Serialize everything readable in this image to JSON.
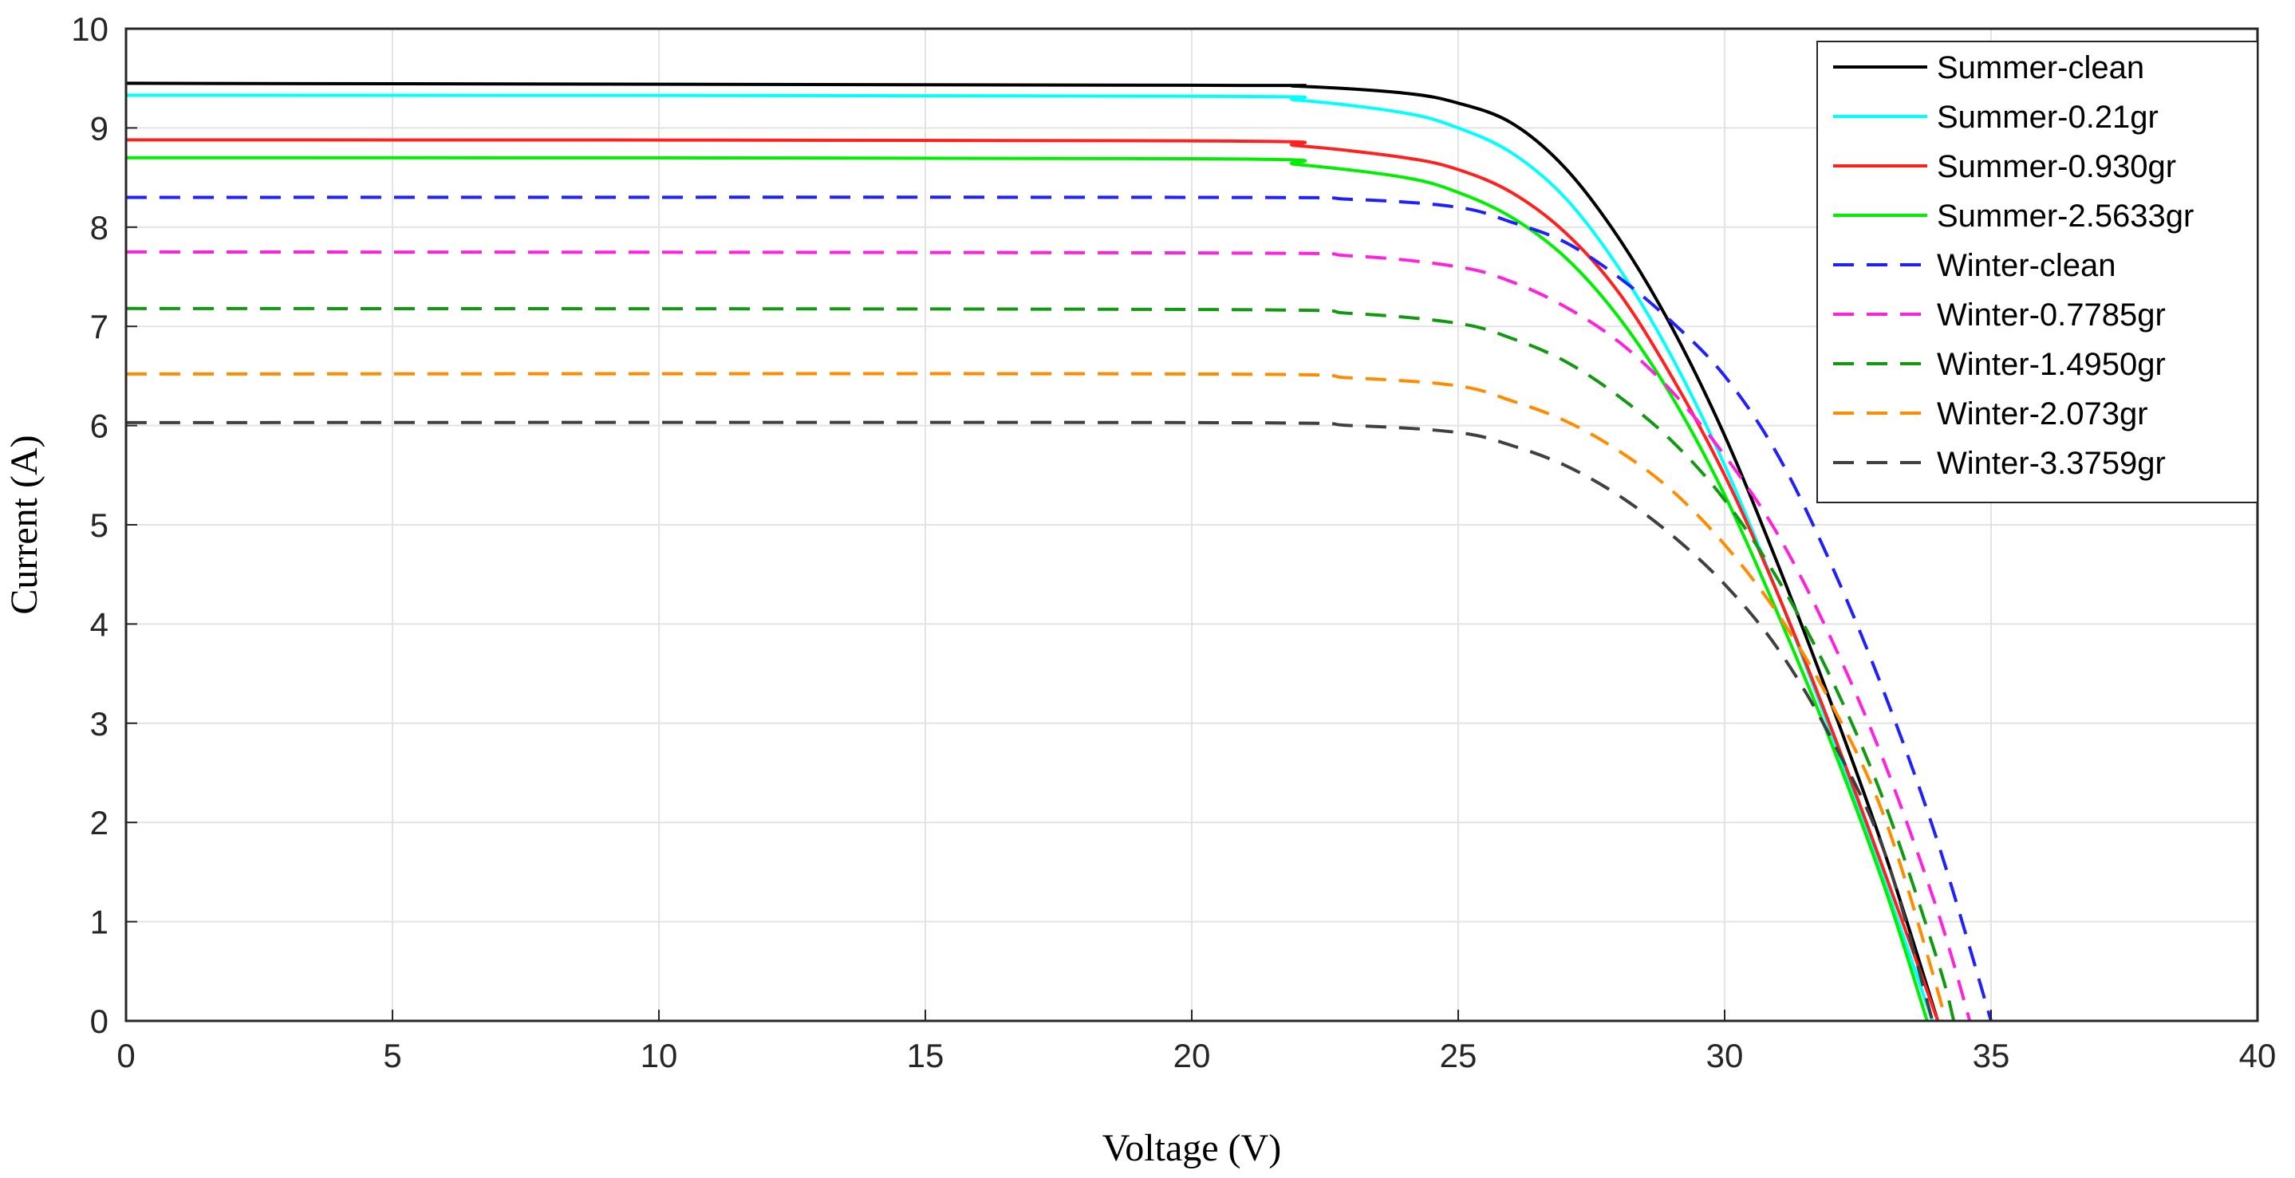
{
  "chart_data": {
    "type": "line",
    "title": "",
    "xlabel": "Voltage (V)",
    "ylabel": "Current (A)",
    "xlim": [
      0,
      40
    ],
    "ylim": [
      0,
      10
    ],
    "xticks": [
      "0",
      "5",
      "10",
      "15",
      "20",
      "25",
      "30",
      "35",
      "40"
    ],
    "yticks": [
      "0",
      "1",
      "2",
      "3",
      "4",
      "5",
      "6",
      "7",
      "8",
      "9",
      "10"
    ],
    "grid": true,
    "legend_position": "top-right",
    "series": [
      {
        "name": "Summer-clean",
        "color": "#000000",
        "dash": "solid",
        "isc": 9.45,
        "voc": 34.0,
        "points": [
          [
            0,
            9.45
          ],
          [
            20,
            9.43
          ],
          [
            22,
            9.42
          ],
          [
            24,
            9.35
          ],
          [
            25,
            9.25
          ],
          [
            26,
            9.05
          ],
          [
            27,
            8.6
          ],
          [
            28,
            7.9
          ],
          [
            29,
            7.0
          ],
          [
            30,
            5.9
          ],
          [
            31,
            4.6
          ],
          [
            32,
            3.2
          ],
          [
            33,
            1.7
          ],
          [
            34,
            0
          ]
        ]
      },
      {
        "name": "Summer-0.21gr",
        "color": "#00ffff",
        "dash": "solid",
        "isc": 9.33,
        "voc": 33.9,
        "points": [
          [
            0,
            9.33
          ],
          [
            20,
            9.32
          ],
          [
            22,
            9.28
          ],
          [
            24,
            9.15
          ],
          [
            25,
            9.0
          ],
          [
            26,
            8.75
          ],
          [
            27,
            8.3
          ],
          [
            28,
            7.6
          ],
          [
            29,
            6.7
          ],
          [
            30,
            5.6
          ],
          [
            31,
            4.3
          ],
          [
            32,
            2.9
          ],
          [
            33,
            1.4
          ],
          [
            33.9,
            0
          ]
        ]
      },
      {
        "name": "Summer-0.930gr",
        "color": "#ff2020",
        "dash": "solid",
        "isc": 8.88,
        "voc": 34.0,
        "points": [
          [
            0,
            8.88
          ],
          [
            20,
            8.87
          ],
          [
            22,
            8.82
          ],
          [
            24,
            8.7
          ],
          [
            25,
            8.58
          ],
          [
            26,
            8.35
          ],
          [
            27,
            7.95
          ],
          [
            28,
            7.35
          ],
          [
            29,
            6.5
          ],
          [
            30,
            5.5
          ],
          [
            31,
            4.3
          ],
          [
            32,
            2.95
          ],
          [
            33,
            1.5
          ],
          [
            34,
            0
          ]
        ]
      },
      {
        "name": "Summer-2.5633gr",
        "color": "#00ee00",
        "dash": "solid",
        "isc": 8.7,
        "voc": 33.8,
        "points": [
          [
            0,
            8.7
          ],
          [
            20,
            8.69
          ],
          [
            22,
            8.63
          ],
          [
            24,
            8.5
          ],
          [
            25,
            8.35
          ],
          [
            26,
            8.1
          ],
          [
            27,
            7.7
          ],
          [
            28,
            7.1
          ],
          [
            29,
            6.3
          ],
          [
            30,
            5.3
          ],
          [
            31,
            4.1
          ],
          [
            32,
            2.8
          ],
          [
            33,
            1.35
          ],
          [
            33.8,
            0
          ]
        ]
      },
      {
        "name": "Winter-clean",
        "color": "#2020ff",
        "dash": "dashed",
        "isc": 8.3,
        "voc": 35.0,
        "points": [
          [
            0,
            8.3
          ],
          [
            20,
            8.3
          ],
          [
            23,
            8.28
          ],
          [
            25,
            8.2
          ],
          [
            26,
            8.05
          ],
          [
            27,
            7.85
          ],
          [
            28,
            7.5
          ],
          [
            29,
            7.05
          ],
          [
            30,
            6.5
          ],
          [
            31,
            5.7
          ],
          [
            32,
            4.6
          ],
          [
            33,
            3.3
          ],
          [
            34,
            1.8
          ],
          [
            35,
            0
          ]
        ]
      },
      {
        "name": "Winter-0.7785gr",
        "color": "#ff22dd",
        "dash": "dashed",
        "isc": 7.75,
        "voc": 34.6,
        "points": [
          [
            0,
            7.75
          ],
          [
            20,
            7.74
          ],
          [
            23,
            7.71
          ],
          [
            25,
            7.6
          ],
          [
            26,
            7.45
          ],
          [
            27,
            7.2
          ],
          [
            28,
            6.85
          ],
          [
            29,
            6.35
          ],
          [
            30,
            5.7
          ],
          [
            31,
            4.9
          ],
          [
            32,
            3.85
          ],
          [
            33,
            2.6
          ],
          [
            34,
            1.1
          ],
          [
            34.6,
            0
          ]
        ]
      },
      {
        "name": "Winter-1.4950gr",
        "color": "#119911",
        "dash": "dashed",
        "isc": 7.18,
        "voc": 34.3,
        "points": [
          [
            0,
            7.18
          ],
          [
            20,
            7.17
          ],
          [
            23,
            7.13
          ],
          [
            25,
            7.03
          ],
          [
            26,
            6.88
          ],
          [
            27,
            6.65
          ],
          [
            28,
            6.3
          ],
          [
            29,
            5.85
          ],
          [
            30,
            5.25
          ],
          [
            31,
            4.45
          ],
          [
            32,
            3.45
          ],
          [
            33,
            2.2
          ],
          [
            34,
            0.6
          ],
          [
            34.3,
            0
          ]
        ]
      },
      {
        "name": "Winter-2.073gr",
        "color": "#ff8c00",
        "dash": "dashed",
        "isc": 6.52,
        "voc": 34.1,
        "points": [
          [
            0,
            6.52
          ],
          [
            20,
            6.52
          ],
          [
            23,
            6.48
          ],
          [
            25,
            6.4
          ],
          [
            26,
            6.25
          ],
          [
            27,
            6.05
          ],
          [
            28,
            5.75
          ],
          [
            29,
            5.35
          ],
          [
            30,
            4.8
          ],
          [
            31,
            4.1
          ],
          [
            32,
            3.2
          ],
          [
            33,
            2.05
          ],
          [
            34,
            0.3
          ],
          [
            34.1,
            0
          ]
        ]
      },
      {
        "name": "Winter-3.3759gr",
        "color": "#404040",
        "dash": "dashed",
        "isc": 6.03,
        "voc": 33.9,
        "points": [
          [
            0,
            6.03
          ],
          [
            20,
            6.03
          ],
          [
            23,
            6.0
          ],
          [
            25,
            5.93
          ],
          [
            26,
            5.8
          ],
          [
            27,
            5.6
          ],
          [
            28,
            5.3
          ],
          [
            29,
            4.9
          ],
          [
            30,
            4.4
          ],
          [
            31,
            3.75
          ],
          [
            32,
            2.85
          ],
          [
            33,
            1.7
          ],
          [
            33.9,
            0
          ]
        ]
      }
    ]
  }
}
